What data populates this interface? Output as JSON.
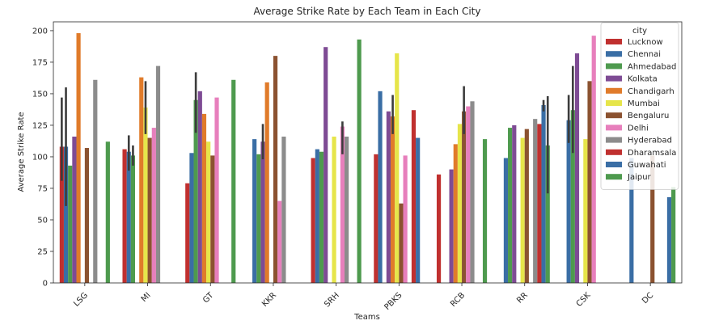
{
  "chart_data": {
    "type": "bar",
    "title": "Average Strike Rate by Each Team in Each City",
    "xlabel": "Teams",
    "ylabel": "Average Strike Rate",
    "ylim": [
      0,
      207
    ],
    "yticks": [
      "0",
      "25",
      "50",
      "75",
      "100",
      "125",
      "150",
      "175",
      "200"
    ],
    "categories": [
      "LSG",
      "MI",
      "GT",
      "KKR",
      "SRH",
      "PBKS",
      "RCB",
      "RR",
      "CSK",
      "DC"
    ],
    "legend_title": "city",
    "legend_position": "top-right",
    "grid": false,
    "series": [
      {
        "name": "Lucknow",
        "color": "#c0302f",
        "values": [
          108,
          106,
          79,
          0,
          99,
          102,
          86,
          0,
          0,
          0
        ]
      },
      {
        "name": "Chennai",
        "color": "#3a6ea5",
        "values": [
          108,
          104,
          103,
          114,
          106,
          152,
          0,
          99,
          129,
          99
        ]
      },
      {
        "name": "Ahmedabad",
        "color": "#4e9a4e",
        "values": [
          93,
          101,
          145,
          102,
          104,
          0,
          0,
          123,
          137,
          0
        ]
      },
      {
        "name": "Kolkata",
        "color": "#7e4b94",
        "values": [
          116,
          0,
          152,
          112,
          187,
          136,
          90,
          125,
          182,
          0
        ]
      },
      {
        "name": "Chandigarh",
        "color": "#e07b2a",
        "values": [
          198,
          163,
          134,
          159,
          0,
          132,
          110,
          0,
          0,
          0
        ]
      },
      {
        "name": "Mumbai",
        "color": "#e6e54a",
        "values": [
          0,
          139,
          112,
          0,
          116,
          182,
          126,
          115,
          114,
          0
        ]
      },
      {
        "name": "Bengaluru",
        "color": "#8b5230",
        "values": [
          107,
          115,
          101,
          180,
          0,
          63,
          136,
          122,
          160,
          101
        ]
      },
      {
        "name": "Delhi",
        "color": "#e77fbc",
        "values": [
          0,
          123,
          147,
          65,
          124,
          101,
          140,
          0,
          196,
          0
        ]
      },
      {
        "name": "Hyderabad",
        "color": "#8c8c8c",
        "values": [
          161,
          172,
          0,
          116,
          116,
          0,
          144,
          130,
          0,
          0
        ]
      },
      {
        "name": "Dharamsala",
        "color": "#c0302f",
        "values": [
          0,
          0,
          0,
          0,
          0,
          137,
          0,
          126,
          0,
          0
        ]
      },
      {
        "name": "Guwahati",
        "color": "#3a6ea5",
        "values": [
          0,
          0,
          0,
          0,
          0,
          115,
          0,
          141,
          0,
          68
        ]
      },
      {
        "name": "Jaipur",
        "color": "#4e9a4e",
        "values": [
          112,
          0,
          161,
          0,
          193,
          0,
          114,
          109,
          0,
          76
        ]
      }
    ],
    "error_bars": [
      {
        "category": "LSG",
        "series": "Lucknow",
        "low": 81,
        "high": 147
      },
      {
        "category": "LSG",
        "series": "Chennai",
        "low": 61,
        "high": 155
      },
      {
        "category": "MI",
        "series": "Chennai",
        "low": 89,
        "high": 117
      },
      {
        "category": "MI",
        "series": "Ahmedabad",
        "low": 93,
        "high": 109
      },
      {
        "category": "MI",
        "series": "Mumbai",
        "low": 118,
        "high": 160
      },
      {
        "category": "GT",
        "series": "Ahmedabad",
        "low": 119,
        "high": 167
      },
      {
        "category": "KKR",
        "series": "Kolkata",
        "low": 98,
        "high": 126
      },
      {
        "category": "SRH",
        "series": "Delhi",
        "low": 102,
        "high": 128
      },
      {
        "category": "PBKS",
        "series": "Chandigarh",
        "low": 118,
        "high": 149
      },
      {
        "category": "RCB",
        "series": "Bengaluru",
        "low": 118,
        "high": 156
      },
      {
        "category": "RR",
        "series": "Guwahati",
        "low": 136,
        "high": 145
      },
      {
        "category": "RR",
        "series": "Jaipur",
        "low": 71,
        "high": 148
      },
      {
        "category": "CSK",
        "series": "Chennai",
        "low": 111,
        "high": 149
      },
      {
        "category": "CSK",
        "series": "Ahmedabad",
        "low": 103,
        "high": 172
      }
    ]
  }
}
